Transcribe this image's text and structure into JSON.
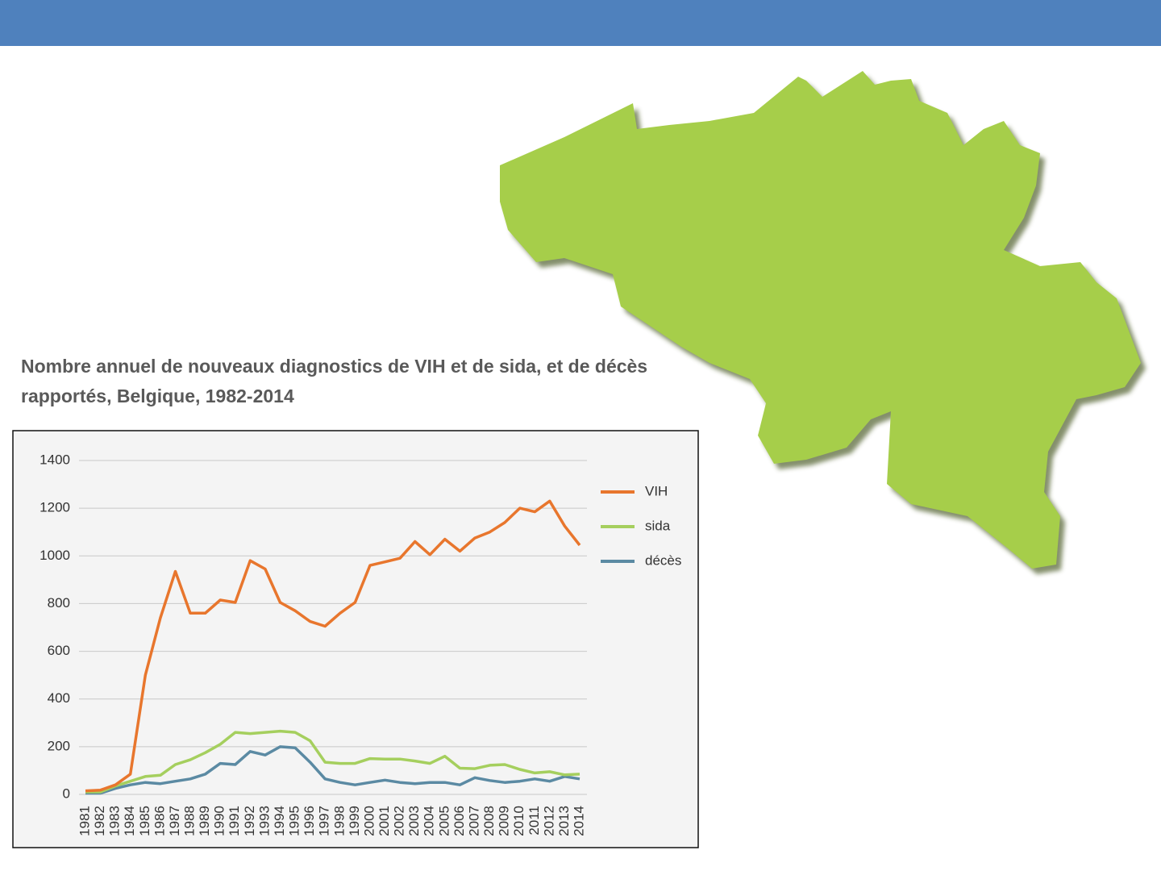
{
  "chart_data": {
    "type": "line",
    "title": "Nombre annuel de nouveaux diagnostics de VIH et de sida, et de décès rapportés, Belgique, 1982-2014",
    "categories": [
      "1981",
      "1982",
      "1983",
      "1984",
      "1985",
      "1986",
      "1987",
      "1988",
      "1989",
      "1990",
      "1991",
      "1992",
      "1993",
      "1994",
      "1995",
      "1996",
      "1997",
      "1998",
      "1999",
      "2000",
      "2001",
      "2002",
      "2003",
      "2004",
      "2005",
      "2006",
      "2007",
      "2008",
      "2009",
      "2010",
      "2011",
      "2012",
      "2013",
      "2014"
    ],
    "series": [
      {
        "name": "VIH",
        "color": "#e8762d",
        "values": [
          15,
          18,
          40,
          85,
          500,
          740,
          935,
          760,
          760,
          815,
          805,
          980,
          945,
          805,
          770,
          725,
          705,
          760,
          805,
          960,
          975,
          990,
          1060,
          1005,
          1070,
          1020,
          1075,
          1100,
          1140,
          1200,
          1185,
          1230,
          1125,
          1045
        ]
      },
      {
        "name": "sida",
        "color": "#a5cf5e",
        "values": [
          10,
          10,
          35,
          55,
          75,
          80,
          125,
          145,
          175,
          210,
          260,
          255,
          260,
          265,
          260,
          225,
          135,
          130,
          130,
          150,
          148,
          148,
          140,
          130,
          160,
          110,
          108,
          122,
          125,
          105,
          90,
          95,
          82,
          85
        ]
      },
      {
        "name": "décès",
        "color": "#5b8aa3",
        "values": [
          5,
          5,
          25,
          40,
          50,
          45,
          55,
          65,
          85,
          130,
          125,
          180,
          165,
          200,
          195,
          135,
          65,
          50,
          40,
          50,
          60,
          50,
          45,
          50,
          50,
          40,
          70,
          58,
          50,
          55,
          65,
          55,
          75,
          65
        ]
      }
    ],
    "ylim": [
      0,
      1400
    ],
    "yticks": [
      0,
      200,
      400,
      600,
      800,
      1000,
      1200,
      1400
    ],
    "grid": true
  }
}
